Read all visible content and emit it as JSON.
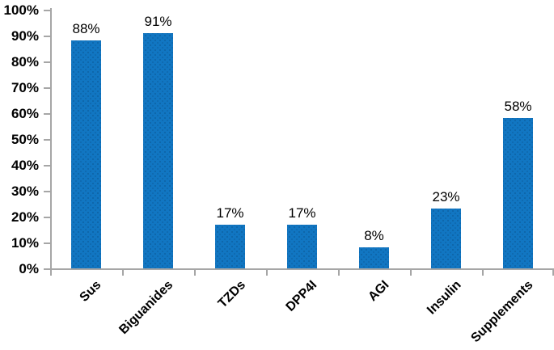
{
  "chart_data": {
    "type": "bar",
    "title": "",
    "xlabel": "",
    "ylabel": "",
    "categories": [
      "Sus",
      "Biguanides",
      "TZDs",
      "DPP4I",
      "AGI",
      "Insulin",
      "Supplements"
    ],
    "values": [
      88,
      91,
      17,
      17,
      8,
      23,
      58
    ],
    "value_labels": [
      "88%",
      "91%",
      "17%",
      "17%",
      "8%",
      "23%",
      "58%"
    ],
    "y_tick_labels": [
      "0%",
      "10%",
      "20%",
      "30%",
      "40%",
      "50%",
      "60%",
      "70%",
      "80%",
      "90%",
      "100%"
    ],
    "ylim": [
      0,
      100
    ],
    "y_tick_step": 10,
    "grid": false,
    "legend": "none",
    "bar_color": "#1176c2",
    "axis_color": "#a6a6a6",
    "text_color": "#000000",
    "x_labels_rotation_deg": 45
  }
}
